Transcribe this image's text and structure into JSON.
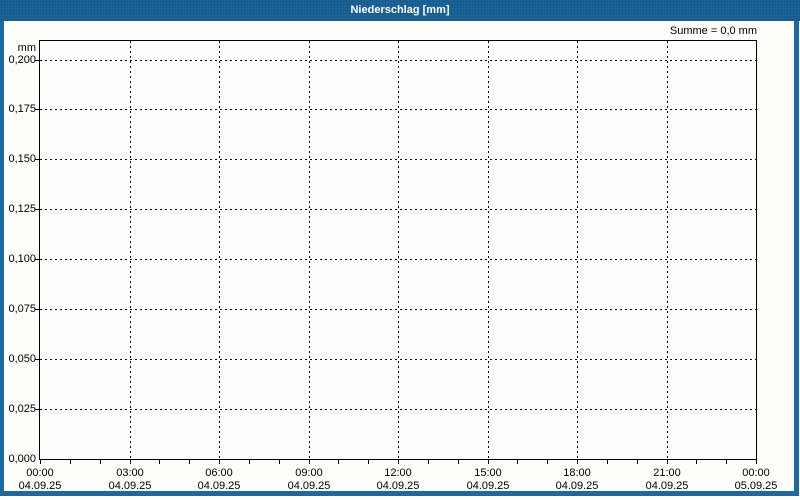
{
  "title_bar": {
    "title": "Niederschlag [mm]"
  },
  "annotation": {
    "summe_label": "Summe = 0,0 mm"
  },
  "colors": {
    "titlebar_bg": "#1B699E",
    "titlebar_text": "#FFFFFF",
    "frame_border": "#1B699E",
    "plot_bg": "#FDFEFB",
    "grid": "#000000",
    "axis_text": "#000000"
  },
  "chart_data": {
    "type": "line",
    "title": "Niederschlag [mm]",
    "grid_style": "dashed",
    "legend": "none",
    "annotation": "Summe = 0,0 mm",
    "y_axis": {
      "unit": "mm",
      "min": 0.0,
      "max": 0.2,
      "tick_interval": 0.025,
      "tick_labels": [
        "0,000",
        "0,025",
        "0,050",
        "0,075",
        "0,100",
        "0,125",
        "0,150",
        "0,175",
        "0,200"
      ]
    },
    "x_axis": {
      "start": "04.09.25 00:00",
      "end": "05.09.25 00:00",
      "major_tick_hours": 3,
      "minor_tick_hours": 1,
      "ticks": [
        {
          "time": "00:00",
          "date": "04.09.25"
        },
        {
          "time": "03:00",
          "date": "04.09.25"
        },
        {
          "time": "06:00",
          "date": "04.09.25"
        },
        {
          "time": "09:00",
          "date": "04.09.25"
        },
        {
          "time": "12:00",
          "date": "04.09.25"
        },
        {
          "time": "15:00",
          "date": "04.09.25"
        },
        {
          "time": "18:00",
          "date": "04.09.25"
        },
        {
          "time": "21:00",
          "date": "04.09.25"
        },
        {
          "time": "00:00",
          "date": "05.09.25"
        }
      ]
    },
    "series": [
      {
        "name": "Niederschlag",
        "points": [],
        "sum": "0,0 mm"
      }
    ]
  }
}
